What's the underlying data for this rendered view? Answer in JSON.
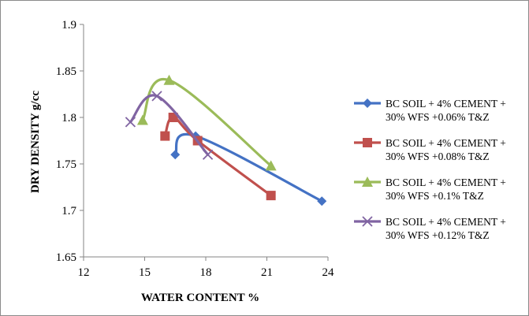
{
  "chart_data": {
    "type": "scatter",
    "xlabel": "WATER CONTENT %",
    "ylabel": "DRY DENSITY g/cc",
    "xlim": [
      12,
      24
    ],
    "ylim": [
      1.65,
      1.9
    ],
    "xticks": [
      "12",
      "15",
      "18",
      "21",
      "24"
    ],
    "yticks": [
      "1.65",
      "1.7",
      "1.75",
      "1.8",
      "1.85",
      "1.9"
    ],
    "grid": false,
    "legend_position": "right",
    "series": [
      {
        "name": [
          "BC SOIL + 4% CEMENT +",
          "30% WFS +0.06% T&Z"
        ],
        "color": "#4472C4",
        "marker": "diamond",
        "x": [
          16.5,
          17.5,
          23.7
        ],
        "y": [
          1.76,
          1.78,
          1.71
        ]
      },
      {
        "name": [
          "BC SOIL + 4% CEMENT +",
          "30% WFS +0.08% T&Z"
        ],
        "color": "#C0504D",
        "marker": "square",
        "x": [
          16.0,
          16.4,
          17.6,
          21.2
        ],
        "y": [
          1.78,
          1.8,
          1.775,
          1.716
        ]
      },
      {
        "name": [
          "BC SOIL + 4% CEMENT +",
          "30% WFS +0.1% T&Z"
        ],
        "color": "#9BBB59",
        "marker": "triangle",
        "x": [
          14.9,
          16.2,
          21.2
        ],
        "y": [
          1.797,
          1.84,
          1.748
        ]
      },
      {
        "name": [
          "BC SOIL + 4% CEMENT +",
          "30% WFS +0.12% T&Z"
        ],
        "color": "#8064A2",
        "marker": "x",
        "x": [
          14.3,
          15.6,
          18.1
        ],
        "y": [
          1.795,
          1.823,
          1.76
        ]
      }
    ]
  }
}
